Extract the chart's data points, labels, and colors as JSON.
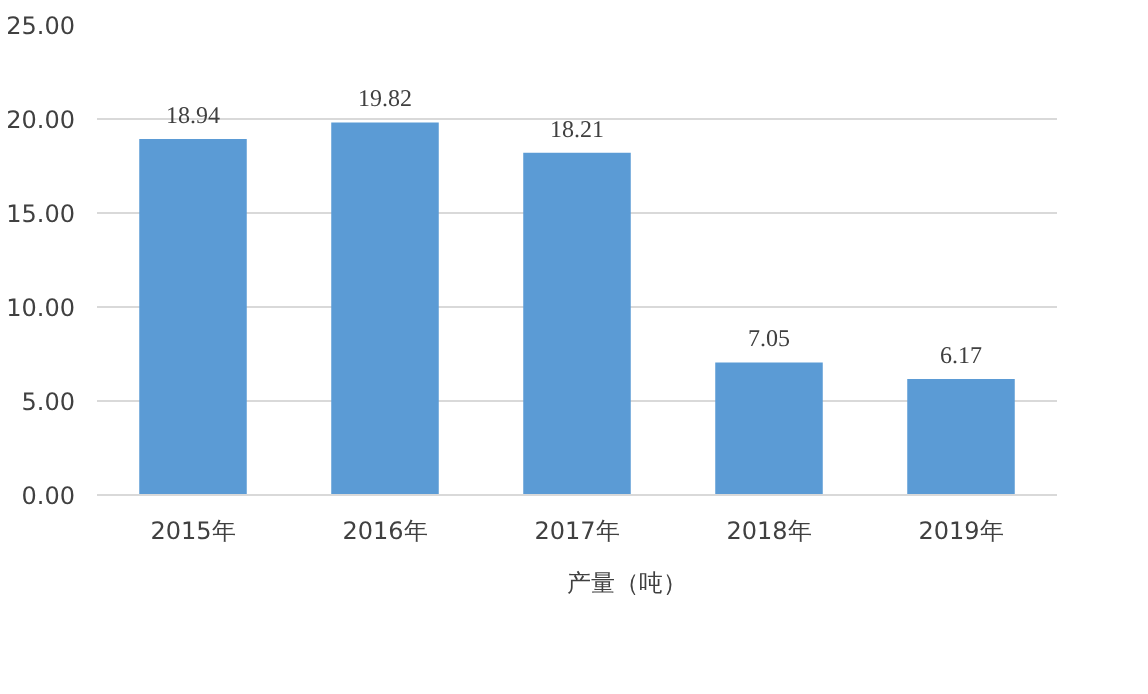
{
  "chart_data": {
    "type": "bar",
    "categories": [
      "2015年",
      "2016年",
      "2017年",
      "2018年",
      "2019年"
    ],
    "series": [
      {
        "name": "产量（吨）",
        "color": "#5b9bd5",
        "values": [
          18.94,
          19.82,
          18.21,
          7.05,
          6.17
        ]
      }
    ],
    "ylim": [
      0,
      25
    ],
    "yticks": [
      {
        "value": 0,
        "label": "0.00"
      },
      {
        "value": 5,
        "label": "5.00"
      },
      {
        "value": 10,
        "label": "10.00"
      },
      {
        "value": 15,
        "label": "15.00"
      },
      {
        "value": 20,
        "label": "20.00"
      },
      {
        "value": 25,
        "label": "25.00"
      }
    ],
    "grid": "y",
    "legend": "bottom",
    "data_labels": true
  }
}
